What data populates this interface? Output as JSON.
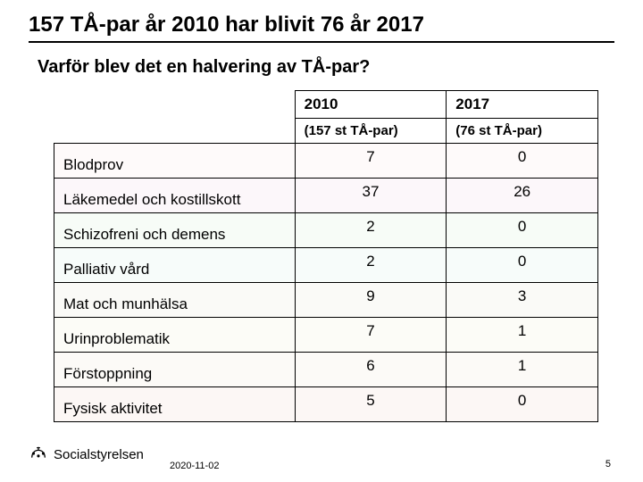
{
  "title": "157 TÅ-par år 2010 har blivit 76 år 2017",
  "subtitle": "Varför blev det en halvering av TÅ-par?",
  "table": {
    "header": {
      "col1": "2010",
      "col2": "2017"
    },
    "subheader": {
      "col1": "(157 st TÅ-par)",
      "col2": "(76 st TÅ-par)"
    },
    "row_colors": [
      "#fefafa",
      "#fcf7fa",
      "#f7fcf7",
      "#f7fcfa",
      "#fafaf7",
      "#fcfcf7",
      "#fcfaf7",
      "#fcf7f5"
    ],
    "rows": [
      {
        "label": "Blodprov",
        "v2010": "7",
        "v2017": "0"
      },
      {
        "label": "Läkemedel och kostillskott",
        "v2010": "37",
        "v2017": "26"
      },
      {
        "label": "Schizofreni och demens",
        "v2010": "2",
        "v2017": "0"
      },
      {
        "label": "Palliativ vård",
        "v2010": "2",
        "v2017": "0"
      },
      {
        "label": "Mat och munhälsa",
        "v2010": "9",
        "v2017": "3"
      },
      {
        "label": "Urinproblematik",
        "v2010": "7",
        "v2017": "1"
      },
      {
        "label": "Förstoppning",
        "v2010": "6",
        "v2017": "1"
      },
      {
        "label": "Fysisk aktivitet",
        "v2010": "5",
        "v2017": "0"
      }
    ]
  },
  "footer": {
    "org": "Socialstyrelsen",
    "date": "2020-11-02",
    "page": "5"
  },
  "style": {
    "title_fontsize": 24,
    "subtitle_fontsize": 20,
    "cell_fontsize": 17,
    "border_color": "#000000",
    "background": "#ffffff"
  }
}
